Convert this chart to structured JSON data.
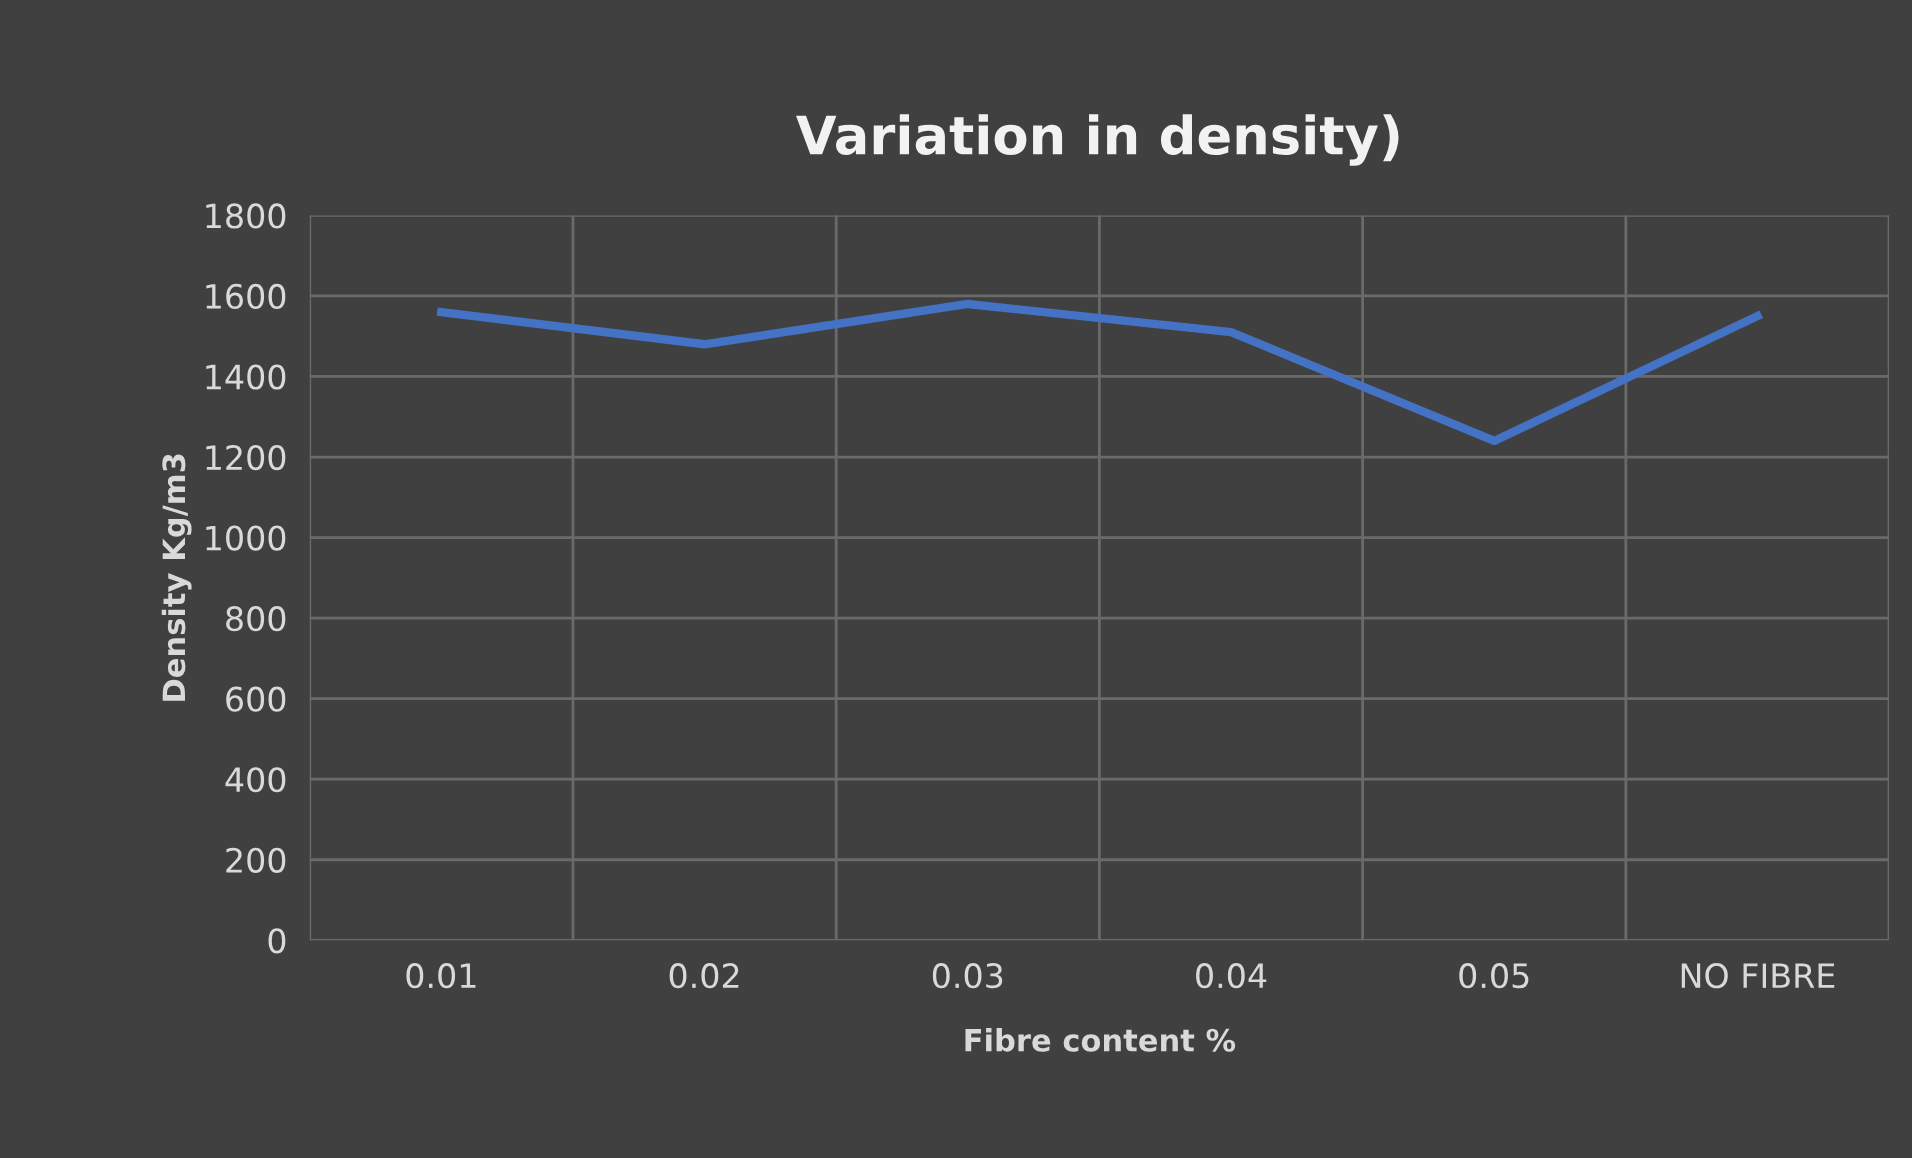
{
  "chart_data": {
    "type": "line",
    "title": "Variation in density)",
    "xlabel": "Fibre content %",
    "ylabel": "Density Kg/m3",
    "categories": [
      "0.01",
      "0.02",
      "0.03",
      "0.04",
      "0.05",
      "NO FIBRE"
    ],
    "series": [
      {
        "color": "#4472c4",
        "values": [
          1560,
          1480,
          1580,
          1510,
          1240,
          1550
        ]
      }
    ],
    "ylim": [
      0,
      1800
    ],
    "yticks": [
      0,
      200,
      400,
      600,
      800,
      1000,
      1200,
      1400,
      1600,
      1800
    ],
    "grid": true,
    "legend": false,
    "marker": "none",
    "line_style": "solid"
  }
}
